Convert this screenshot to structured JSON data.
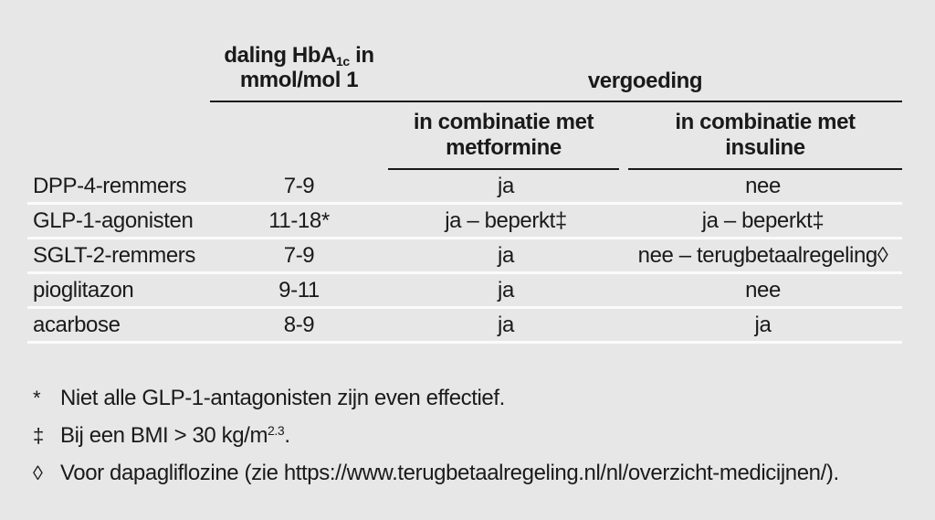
{
  "colors": {
    "background": "#e7e7e7",
    "text": "#1a1a1a",
    "header_rule": "#1a1a1a",
    "row_separator": "#fbfbfb"
  },
  "table": {
    "header": {
      "hba1c_line1_pre": "daling HbA",
      "hba1c_line1_sub": "1c",
      "hba1c_line1_post": " in",
      "hba1c_line2": "mmol/mol 1",
      "vergoeding": "vergoeding",
      "sub_metformine_line1": "in combinatie met",
      "sub_metformine_line2": "metformine",
      "sub_insuline_line1": "in combinatie met",
      "sub_insuline_line2": "insuline"
    },
    "rows": [
      {
        "name": "DPP-4-remmers",
        "hba1c": "7-9",
        "metformine": "ja",
        "insuline": "nee"
      },
      {
        "name": "GLP-1-agonisten",
        "hba1c": "11-18*",
        "metformine": "ja – beperkt‡",
        "insuline": "ja – beperkt‡"
      },
      {
        "name": "SGLT-2-remmers",
        "hba1c": "7-9",
        "metformine": "ja",
        "insuline": "nee – terugbetaalregeling◊"
      },
      {
        "name": "pioglitazon",
        "hba1c": "9-11",
        "metformine": "ja",
        "insuline": "nee"
      },
      {
        "name": "acarbose",
        "hba1c": "8-9",
        "metformine": "ja",
        "insuline": "ja"
      }
    ]
  },
  "footnotes": {
    "f1": {
      "marker": "*",
      "text": "Niet alle GLP-1-antagonisten zijn even effectief."
    },
    "f2": {
      "marker": "‡",
      "pre": "Bij een BMI > 30 kg/m",
      "sup": "2.3",
      "post": "."
    },
    "f3": {
      "marker": "◊",
      "text": "Voor dapagliflozine (zie https://www.terugbetaalregeling.nl/nl/overzicht-medicijnen/)."
    }
  }
}
